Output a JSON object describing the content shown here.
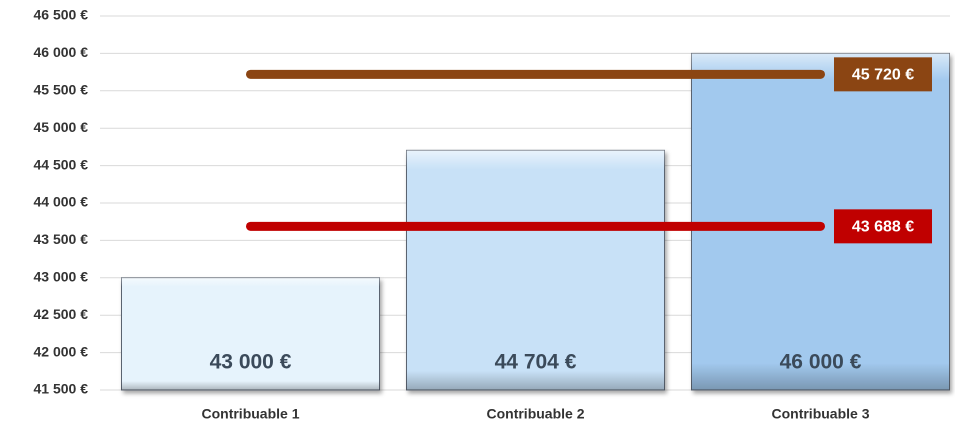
{
  "chart_data": {
    "type": "bar",
    "categories": [
      "Contribuable 1",
      "Contribuable 2",
      "Contribuable 3"
    ],
    "values": [
      43000,
      44704,
      46000
    ],
    "value_labels": [
      "43 000 €",
      "44 704 €",
      "46 000 €"
    ],
    "colors": [
      "#e6f3fc",
      "#c8e1f7",
      "#a2c9ee"
    ],
    "ylim": [
      41500,
      46500
    ],
    "yticks": [
      {
        "value": 41500,
        "label": "41 500 €"
      },
      {
        "value": 42000,
        "label": "42 000 €"
      },
      {
        "value": 42500,
        "label": "42 500 €"
      },
      {
        "value": 43000,
        "label": "43 000 €"
      },
      {
        "value": 43500,
        "label": "43 500 €"
      },
      {
        "value": 44000,
        "label": "44 000 €"
      },
      {
        "value": 44500,
        "label": "44 500 €"
      },
      {
        "value": 45000,
        "label": "45 000 €"
      },
      {
        "value": 45500,
        "label": "45 500 €"
      },
      {
        "value": 46000,
        "label": "46 000 €"
      },
      {
        "value": 46500,
        "label": "46 500 €"
      }
    ],
    "grid": true,
    "reference_lines": [
      {
        "value": 45720,
        "label": "45 720 €",
        "color": "#8b4513"
      },
      {
        "value": 43688,
        "label": "43 688 €",
        "color": "#c00000"
      }
    ]
  }
}
